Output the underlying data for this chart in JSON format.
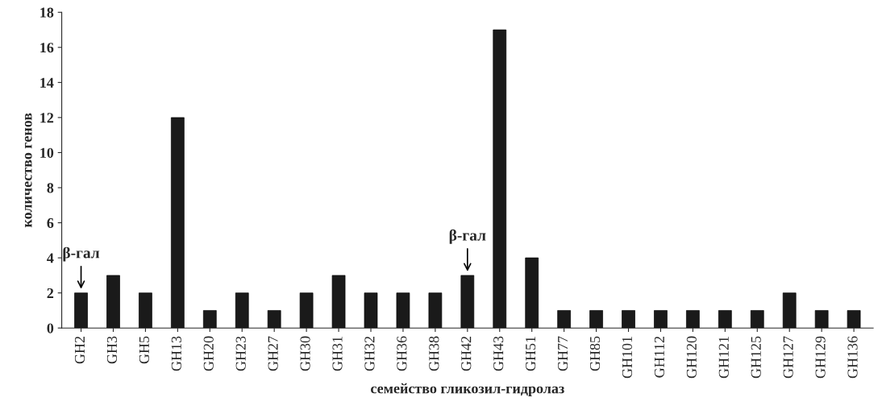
{
  "chart_data": {
    "type": "bar",
    "xlabel": "семейство гликозил-гидролаз",
    "ylabel": "количество генов",
    "categories": [
      "GH2",
      "GH3",
      "GH5",
      "GH13",
      "GH20",
      "GH23",
      "GH27",
      "GH30",
      "GH31",
      "GH32",
      "GH36",
      "GH38",
      "GH42",
      "GH43",
      "GH51",
      "GH77",
      "GH85",
      "GH101",
      "GH112",
      "GH120",
      "GH121",
      "GH125",
      "GH127",
      "GH129",
      "GH136"
    ],
    "values": [
      2,
      3,
      2,
      12,
      1,
      2,
      1,
      2,
      3,
      2,
      2,
      2,
      3,
      17,
      4,
      1,
      1,
      1,
      1,
      1,
      1,
      1,
      2,
      1,
      1
    ],
    "color": "#1a1a1a",
    "ylim": [
      0,
      18
    ],
    "yticks": [
      0,
      2,
      4,
      6,
      8,
      10,
      12,
      14,
      16,
      18
    ],
    "grid": false,
    "legend": false,
    "annotations": [
      {
        "text": "β-гал",
        "x": "GH2",
        "y": 2
      },
      {
        "text": "β-гал",
        "x": "GH42",
        "y": 3
      }
    ]
  }
}
